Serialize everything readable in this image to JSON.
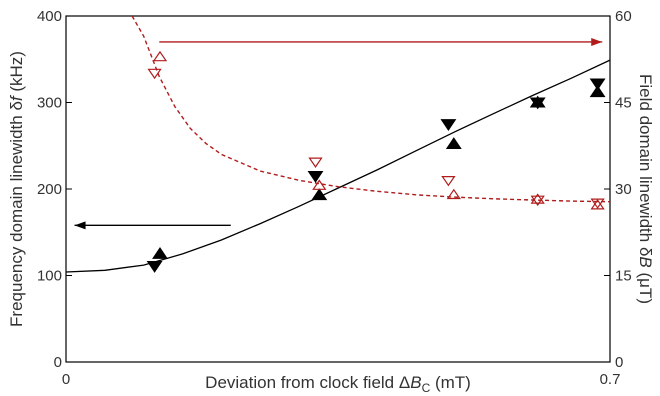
{
  "chart_data": {
    "type": "scatter",
    "xlabel": {
      "text": "Deviation from clock field Δ",
      "var": "B",
      "sub": "C",
      "unit": " (mT)"
    },
    "ylabel_left": {
      "text": "Frequency domain linewidth δ",
      "var": "f",
      "unit": " (kHz)"
    },
    "ylabel_right": {
      "text": "Field domain linewidth δ",
      "var": "B",
      "unit": " (μT)"
    },
    "xlim": [
      0,
      0.7
    ],
    "ylim_left": [
      0,
      400
    ],
    "ylim_right": [
      0,
      60
    ],
    "x_ticks": [
      "0",
      "0.7"
    ],
    "x_tick_values": [
      0,
      0.7
    ],
    "y_ticks_left": [
      "0",
      "100",
      "200",
      "300",
      "400"
    ],
    "y_tick_values_left": [
      0,
      100,
      200,
      300,
      400
    ],
    "y_ticks_right": [
      "0",
      "15",
      "30",
      "45",
      "60"
    ],
    "y_tick_values_right": [
      0,
      15,
      30,
      45,
      60
    ],
    "colors": {
      "black": "#000000",
      "red": "#b01c1c"
    },
    "series": [
      {
        "axis": "left",
        "marker": "triangle-up",
        "filled": true,
        "color": "black",
        "x": [
          0.121,
          0.326,
          0.499,
          0.607,
          0.684
        ],
        "y": [
          125,
          193,
          252,
          300,
          312
        ]
      },
      {
        "axis": "left",
        "marker": "triangle-down",
        "filled": true,
        "color": "black",
        "x": [
          0.114,
          0.321,
          0.492,
          0.607,
          0.684
        ],
        "y": [
          111,
          215,
          275,
          300,
          322
        ]
      },
      {
        "axis": "left",
        "curve": "solid",
        "color": "black",
        "x": [
          0,
          0.05,
          0.1,
          0.15,
          0.2,
          0.25,
          0.3,
          0.35,
          0.4,
          0.45,
          0.5,
          0.55,
          0.6,
          0.65,
          0.7
        ],
        "y": [
          104,
          106,
          112,
          125,
          141,
          160,
          180,
          201,
          222,
          244,
          266,
          287,
          308,
          328,
          349
        ]
      },
      {
        "axis": "right",
        "marker": "triangle-up",
        "filled": false,
        "color": "red",
        "x": [
          0.121,
          0.326,
          0.499,
          0.607,
          0.684
        ],
        "y": [
          52.9,
          30.6,
          29.0,
          28.2,
          27.2
        ]
      },
      {
        "axis": "right",
        "marker": "triangle-down",
        "filled": false,
        "color": "red",
        "x": [
          0.114,
          0.321,
          0.492,
          0.607,
          0.684
        ],
        "y": [
          50.1,
          34.7,
          31.5,
          28.1,
          27.6
        ]
      },
      {
        "axis": "right",
        "curve": "dashed",
        "color": "red",
        "x": [
          0.085,
          0.1,
          0.12,
          0.14,
          0.16,
          0.18,
          0.2,
          0.25,
          0.3,
          0.35,
          0.4,
          0.45,
          0.5,
          0.55,
          0.6,
          0.65,
          0.7
        ],
        "y": [
          60.0,
          56.5,
          49.5,
          44.3,
          40.5,
          37.9,
          36.0,
          33.1,
          31.5,
          30.4,
          29.6,
          29.0,
          28.6,
          28.3,
          28.1,
          27.9,
          27.8
        ]
      }
    ],
    "annotations": [
      {
        "type": "arrow",
        "direction": "left",
        "color": "black",
        "axis": "left",
        "x_from": 0.212,
        "x_to": 0.011,
        "y": 158
      },
      {
        "type": "arrow",
        "direction": "right",
        "color": "red",
        "axis": "right",
        "x_from": 0.12,
        "x_to": 0.69,
        "y": 55.5
      }
    ],
    "grid": false
  }
}
